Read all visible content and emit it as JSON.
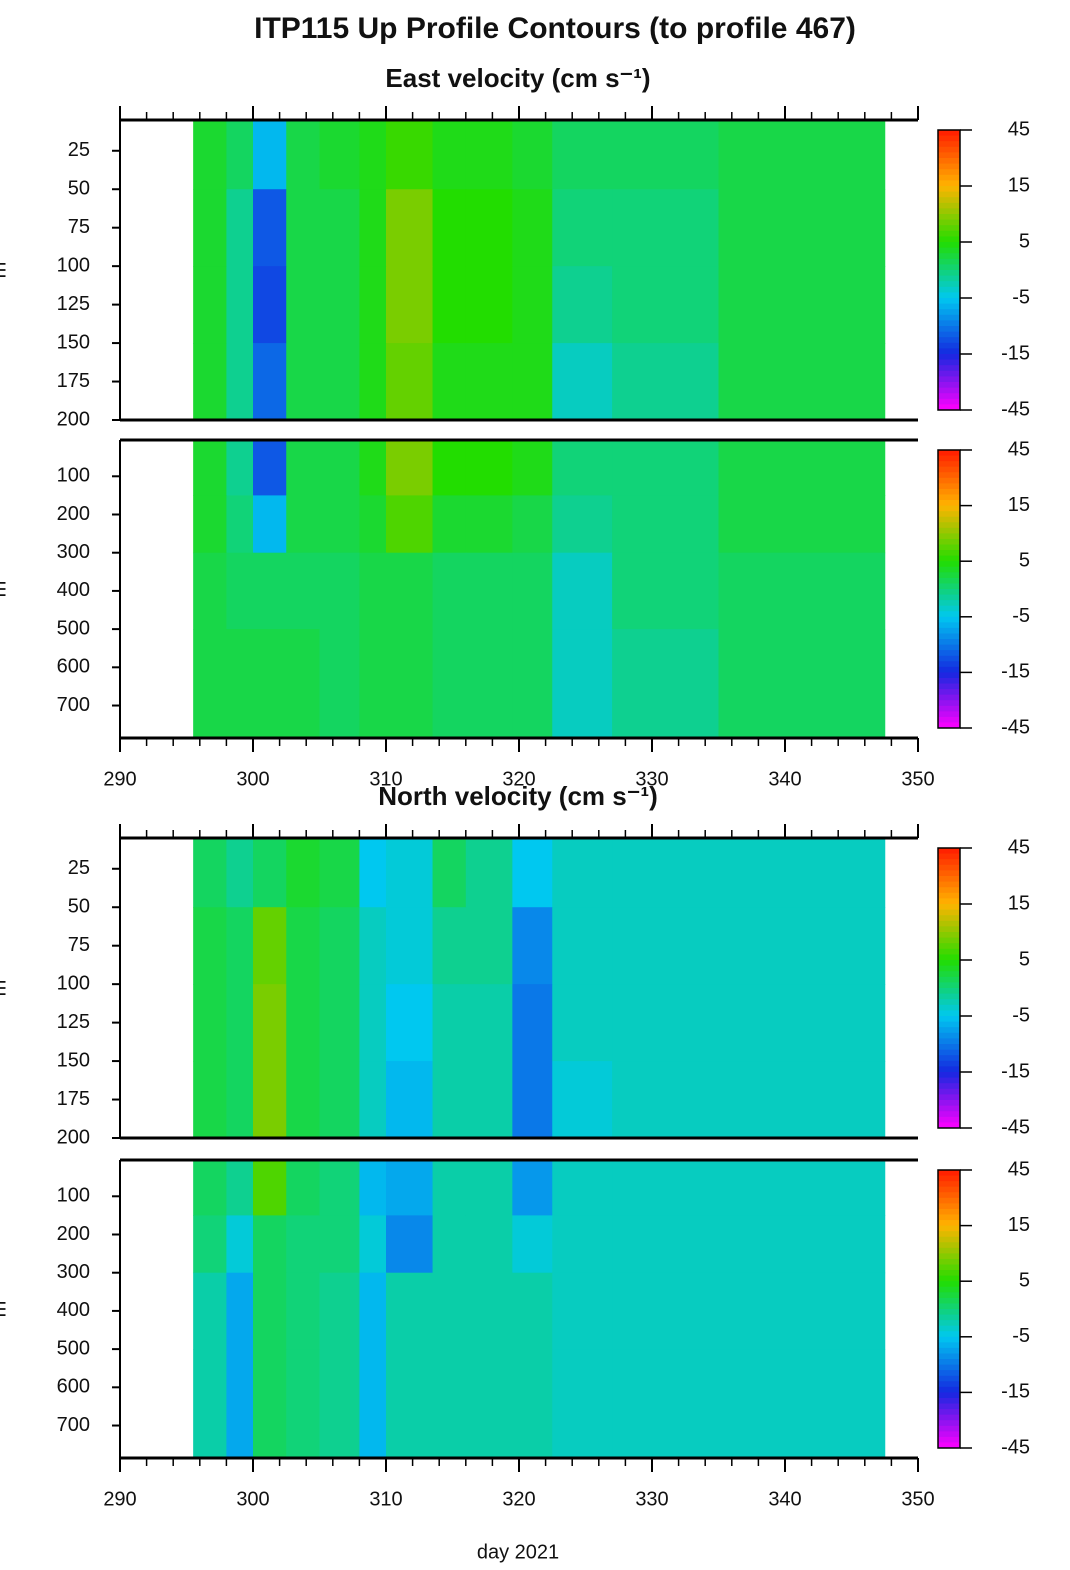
{
  "title": "ITP115 Up Profile Contours (to profile 467)",
  "xlabel": "day 2021",
  "ylabel": "m",
  "colorbar": {
    "ticks": [
      45,
      15,
      5,
      -5,
      -15,
      -45
    ],
    "colors": [
      "#ff1a00",
      "#ffb400",
      "#22dd00",
      "#00c8f0",
      "#1428e0",
      "#ff00ff"
    ]
  },
  "chart_data": [
    {
      "type": "heatmap",
      "title": "East velocity (cm s⁻¹)",
      "x_edges": [
        295.5,
        298,
        300,
        302.5,
        305,
        308,
        310,
        313.5,
        316,
        319.5,
        322.5,
        327,
        335,
        347.5
      ],
      "y_edges": [
        5,
        50,
        100,
        150,
        200
      ],
      "z": [
        [
          3,
          1,
          -6,
          2,
          3,
          4,
          6,
          4,
          4,
          3,
          1,
          1,
          2
        ],
        [
          3,
          -1,
          -12,
          2,
          2,
          4,
          9,
          5,
          5,
          4,
          0,
          0,
          2
        ],
        [
          3,
          -1,
          -13,
          2,
          2,
          4,
          9,
          5,
          5,
          4,
          -1,
          0,
          2
        ],
        [
          3,
          -1,
          -11,
          2,
          2,
          4,
          8,
          4,
          4,
          4,
          -3,
          -1,
          2
        ]
      ],
      "xlim": [
        290,
        350
      ],
      "ylim": [
        200,
        5
      ],
      "yticks": [
        25,
        50,
        75,
        100,
        125,
        150,
        175,
        200
      ]
    },
    {
      "type": "heatmap",
      "x_edges": [
        295.5,
        298,
        300,
        302.5,
        305,
        308,
        310,
        313.5,
        316,
        319.5,
        322.5,
        327,
        335,
        347.5
      ],
      "y_edges": [
        5,
        150,
        300,
        500,
        785
      ],
      "z": [
        [
          3,
          -1,
          -12,
          2,
          2,
          4,
          9,
          5,
          5,
          4,
          0,
          0,
          2
        ],
        [
          3,
          0,
          -6,
          2,
          2,
          3,
          7,
          3,
          3,
          2,
          -1,
          0,
          2
        ],
        [
          2,
          1,
          1,
          1,
          1,
          2,
          2,
          1,
          1,
          1,
          -3,
          0,
          1
        ],
        [
          2,
          2,
          2,
          2,
          1,
          2,
          2,
          1,
          1,
          1,
          -3,
          -1,
          1
        ]
      ],
      "xlim": [
        290,
        350
      ],
      "ylim": [
        785,
        5
      ],
      "xticks": [
        290,
        300,
        310,
        320,
        330,
        340,
        350
      ],
      "yticks": [
        100,
        200,
        300,
        400,
        500,
        600,
        700
      ]
    },
    {
      "type": "heatmap",
      "title": "North velocity (cm s⁻¹)",
      "x_edges": [
        295.5,
        298,
        300,
        302.5,
        305,
        308,
        310,
        313.5,
        316,
        319.5,
        322.5,
        327,
        335,
        347.5
      ],
      "y_edges": [
        5,
        50,
        100,
        150,
        200
      ],
      "z": [
        [
          1,
          -1,
          1,
          3,
          2,
          -5,
          -4,
          1,
          -1,
          -5,
          -3,
          -3,
          -3
        ],
        [
          2,
          1,
          8,
          2,
          1,
          -3,
          -4,
          -1,
          -1,
          -9,
          -3,
          -3,
          -3
        ],
        [
          2,
          1,
          9,
          2,
          1,
          -3,
          -5,
          -2,
          -2,
          -10,
          -3,
          -3,
          -3
        ],
        [
          2,
          1,
          9,
          2,
          1,
          -3,
          -6,
          -2,
          -2,
          -10,
          -4,
          -3,
          -3
        ]
      ],
      "xlim": [
        290,
        350
      ],
      "ylim": [
        200,
        5
      ],
      "yticks": [
        25,
        50,
        75,
        100,
        125,
        150,
        175,
        200
      ]
    },
    {
      "type": "heatmap",
      "x_edges": [
        295.5,
        298,
        300,
        302.5,
        305,
        308,
        310,
        313.5,
        316,
        319.5,
        322.5,
        327,
        335,
        347.5
      ],
      "y_edges": [
        5,
        150,
        300,
        500,
        785
      ],
      "z": [
        [
          1,
          -1,
          7,
          1,
          0,
          -6,
          -7,
          -2,
          -2,
          -8,
          -3,
          -3,
          -3
        ],
        [
          0,
          -4,
          1,
          0,
          0,
          -4,
          -9,
          -2,
          -2,
          -4,
          -3,
          -3,
          -3
        ],
        [
          -2,
          -7,
          1,
          0,
          -1,
          -6,
          -2,
          -2,
          -2,
          -2,
          -3,
          -3,
          -3
        ],
        [
          -2,
          -7,
          1,
          0,
          -1,
          -6,
          -2,
          -2,
          -2,
          -2,
          -3,
          -3,
          -3
        ]
      ],
      "xlim": [
        290,
        350
      ],
      "ylim": [
        785,
        5
      ],
      "xticks": [
        290,
        300,
        310,
        320,
        330,
        340,
        350
      ],
      "yticks": [
        100,
        200,
        300,
        400,
        500,
        600,
        700
      ]
    }
  ]
}
